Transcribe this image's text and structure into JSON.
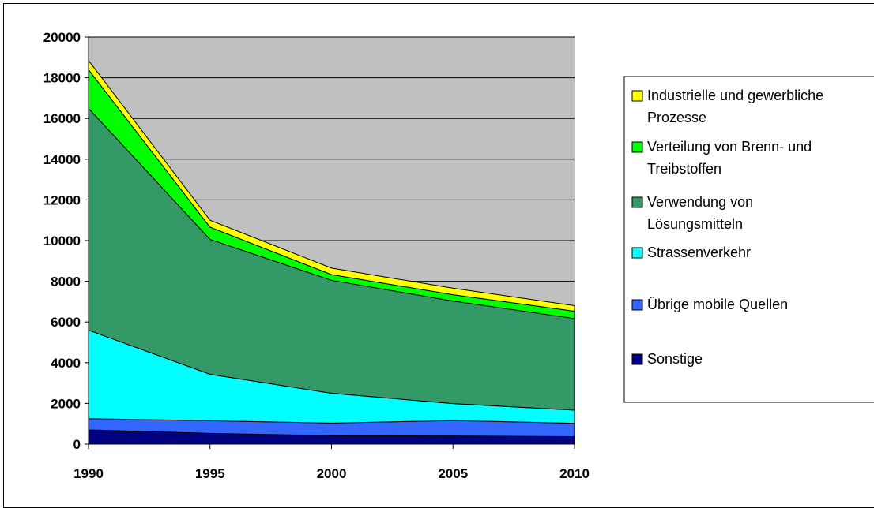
{
  "chart_data": {
    "type": "area",
    "stacked": true,
    "title": "",
    "xlabel": "",
    "ylabel": "",
    "x": [
      "1990",
      "1995",
      "2000",
      "2005",
      "2010"
    ],
    "ylim": [
      0,
      20000
    ],
    "yticks": [
      "0",
      "2000",
      "4000",
      "6000",
      "8000",
      "10000",
      "12000",
      "14000",
      "16000",
      "18000",
      "20000"
    ],
    "grid": true,
    "plot_background": "#c0c0c0",
    "legend_position": "right",
    "series": [
      {
        "name": "Sonstige",
        "color": "#000080",
        "values": [
          700,
          530,
          420,
          400,
          370
        ]
      },
      {
        "name": "Übrige mobile Quellen",
        "color": "#3366ff",
        "values": [
          550,
          620,
          610,
          760,
          650
        ]
      },
      {
        "name": "Strassenverkehr",
        "color": "#00ffff",
        "values": [
          4350,
          2280,
          1470,
          830,
          650
        ]
      },
      {
        "name": "Verwendung von Lösungsmitteln",
        "color": "#339966",
        "values": [
          10900,
          6630,
          5550,
          5040,
          4500
        ]
      },
      {
        "name": "Verteilung von Brenn- und Treibstoffen",
        "color": "#00ff00",
        "values": [
          1900,
          600,
          280,
          310,
          360
        ]
      },
      {
        "name": "Industrielle und gewerbliche Prozesse",
        "color": "#ffff00",
        "values": [
          450,
          340,
          320,
          320,
          270
        ]
      }
    ],
    "legend": [
      {
        "name_lines": [
          "Industrielle und gewerbliche",
          "Prozesse"
        ],
        "color": "#ffff00"
      },
      {
        "name_lines": [
          "Verteilung von Brenn- und",
          "Treibstoffen"
        ],
        "color": "#00ff00"
      },
      {
        "name_lines": [
          "Verwendung von",
          "Lösungsmitteln"
        ],
        "color": "#339966"
      },
      {
        "name_lines": [
          "Strassenverkehr"
        ],
        "color": "#00ffff"
      },
      {
        "name_lines": [
          "Übrige mobile Quellen"
        ],
        "color": "#3366ff"
      },
      {
        "name_lines": [
          "Sonstige"
        ],
        "color": "#000080"
      }
    ]
  }
}
